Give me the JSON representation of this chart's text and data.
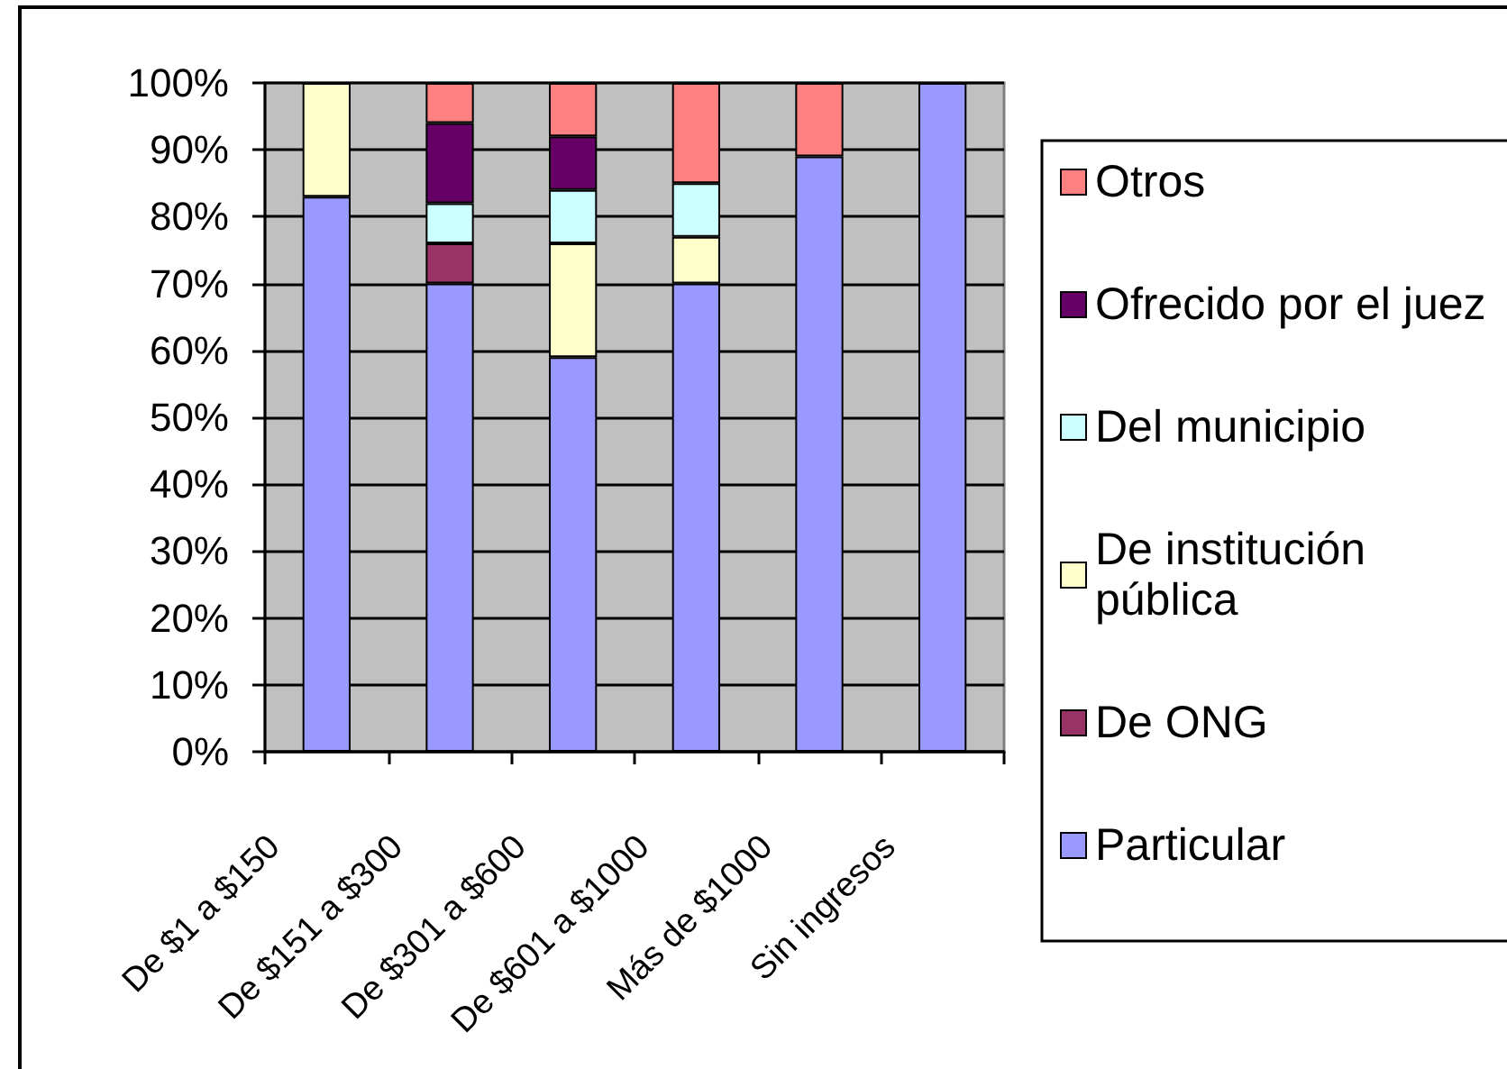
{
  "chart_data": {
    "type": "bar",
    "stacked": true,
    "categories": [
      "De $1 a $150",
      "De $151 a $300",
      "De $301 a $600",
      "De $601 a $1000",
      "Más de $1000",
      "Sin ingresos"
    ],
    "series": [
      {
        "name": "Particular",
        "color": "#9999ff",
        "values": [
          83,
          70,
          59,
          70,
          89,
          100
        ]
      },
      {
        "name": "De ONG",
        "color": "#993366",
        "values": [
          null,
          6,
          null,
          null,
          null,
          null
        ]
      },
      {
        "name": "De institución pública",
        "color": "#ffffcc",
        "values": [
          17,
          null,
          17,
          7,
          null,
          null
        ]
      },
      {
        "name": "Del municipio",
        "color": "#ccffff",
        "values": [
          null,
          6,
          8,
          8,
          null,
          null
        ]
      },
      {
        "name": "Ofrecido por el juez",
        "color": "#660066",
        "values": [
          null,
          12,
          8,
          null,
          null,
          null
        ]
      },
      {
        "name": "Otros",
        "color": "#ff8080",
        "values": [
          null,
          6,
          8,
          15,
          11,
          null
        ]
      }
    ],
    "ylim": [
      0,
      100
    ],
    "yticks": [
      {
        "value": 0,
        "label": "0%"
      },
      {
        "value": 10,
        "label": "10%"
      },
      {
        "value": 20,
        "label": "20%"
      },
      {
        "value": 30,
        "label": "30%"
      },
      {
        "value": 40,
        "label": "40%"
      },
      {
        "value": 50,
        "label": "50%"
      },
      {
        "value": 60,
        "label": "60%"
      },
      {
        "value": 70,
        "label": "70%"
      },
      {
        "value": 80,
        "label": "80%"
      },
      {
        "value": 90,
        "label": "90%"
      },
      {
        "value": 100,
        "label": "100%"
      }
    ],
    "grid": "y",
    "legend": "right"
  }
}
